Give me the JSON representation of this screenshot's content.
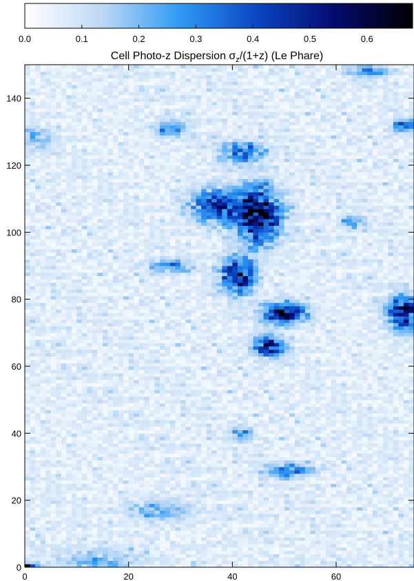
{
  "chart_data": {
    "type": "heatmap",
    "title_main": "Cell Photo-z Dispersion σ",
    "title_sub": "z",
    "title_tail": "/(1+z) (Le Phare)",
    "colorbar": {
      "min": 0.0,
      "max": 0.68,
      "ticks": [
        "0.0",
        "0.1",
        "0.2",
        "0.3",
        "0.4",
        "0.5",
        "0.6"
      ],
      "tick_values": [
        0.0,
        0.1,
        0.2,
        0.3,
        0.4,
        0.5,
        0.6
      ],
      "colormap": [
        "#ffffff",
        "#bcd8f5",
        "#2f9af5",
        "#0b45c2",
        "#050a6e",
        "#000000"
      ]
    },
    "x_ticks": [
      "0",
      "20",
      "40",
      "60"
    ],
    "x_tick_values": [
      0,
      20,
      40,
      60
    ],
    "y_ticks": [
      "0",
      "20",
      "40",
      "60",
      "80",
      "100",
      "120",
      "140"
    ],
    "y_tick_values": [
      0,
      20,
      40,
      60,
      80,
      100,
      120,
      140
    ],
    "xlim": [
      0,
      75
    ],
    "ylim": [
      0,
      150
    ],
    "grid": false,
    "cell_size": 1,
    "background_value": 0.06,
    "hotspots": [
      {
        "x": 45,
        "y": 105,
        "sx": 4,
        "sy": 8,
        "value": 0.55
      },
      {
        "x": 41,
        "y": 87,
        "sx": 3,
        "sy": 5,
        "value": 0.5
      },
      {
        "x": 50,
        "y": 76,
        "sx": 4,
        "sy": 3,
        "value": 0.5
      },
      {
        "x": 47,
        "y": 66,
        "sx": 3,
        "sy": 3,
        "value": 0.42
      },
      {
        "x": 37,
        "y": 108,
        "sx": 5,
        "sy": 5,
        "value": 0.35
      },
      {
        "x": 42,
        "y": 124,
        "sx": 4,
        "sy": 3,
        "value": 0.3
      },
      {
        "x": 73,
        "y": 76,
        "sx": 3,
        "sy": 5,
        "value": 0.45
      },
      {
        "x": 63,
        "y": 103,
        "sx": 2,
        "sy": 2,
        "value": 0.22
      },
      {
        "x": 28,
        "y": 90,
        "sx": 4,
        "sy": 2,
        "value": 0.22
      },
      {
        "x": 28,
        "y": 131,
        "sx": 3,
        "sy": 2,
        "value": 0.25
      },
      {
        "x": 51,
        "y": 29,
        "sx": 4,
        "sy": 2,
        "value": 0.28
      },
      {
        "x": 42,
        "y": 40,
        "sx": 2,
        "sy": 2,
        "value": 0.22
      },
      {
        "x": 26,
        "y": 17,
        "sx": 6,
        "sy": 3,
        "value": 0.15
      },
      {
        "x": 14,
        "y": 2,
        "sx": 7,
        "sy": 3,
        "value": 0.15
      },
      {
        "x": 2,
        "y": 128,
        "sx": 3,
        "sy": 3,
        "value": 0.15
      },
      {
        "x": 66,
        "y": 148,
        "sx": 4,
        "sy": 2,
        "value": 0.2
      },
      {
        "x": 73,
        "y": 132,
        "sx": 2,
        "sy": 2,
        "value": 0.3
      },
      {
        "x": 1,
        "y": 0,
        "sx": 2,
        "sy": 1,
        "value": 0.68
      }
    ]
  }
}
